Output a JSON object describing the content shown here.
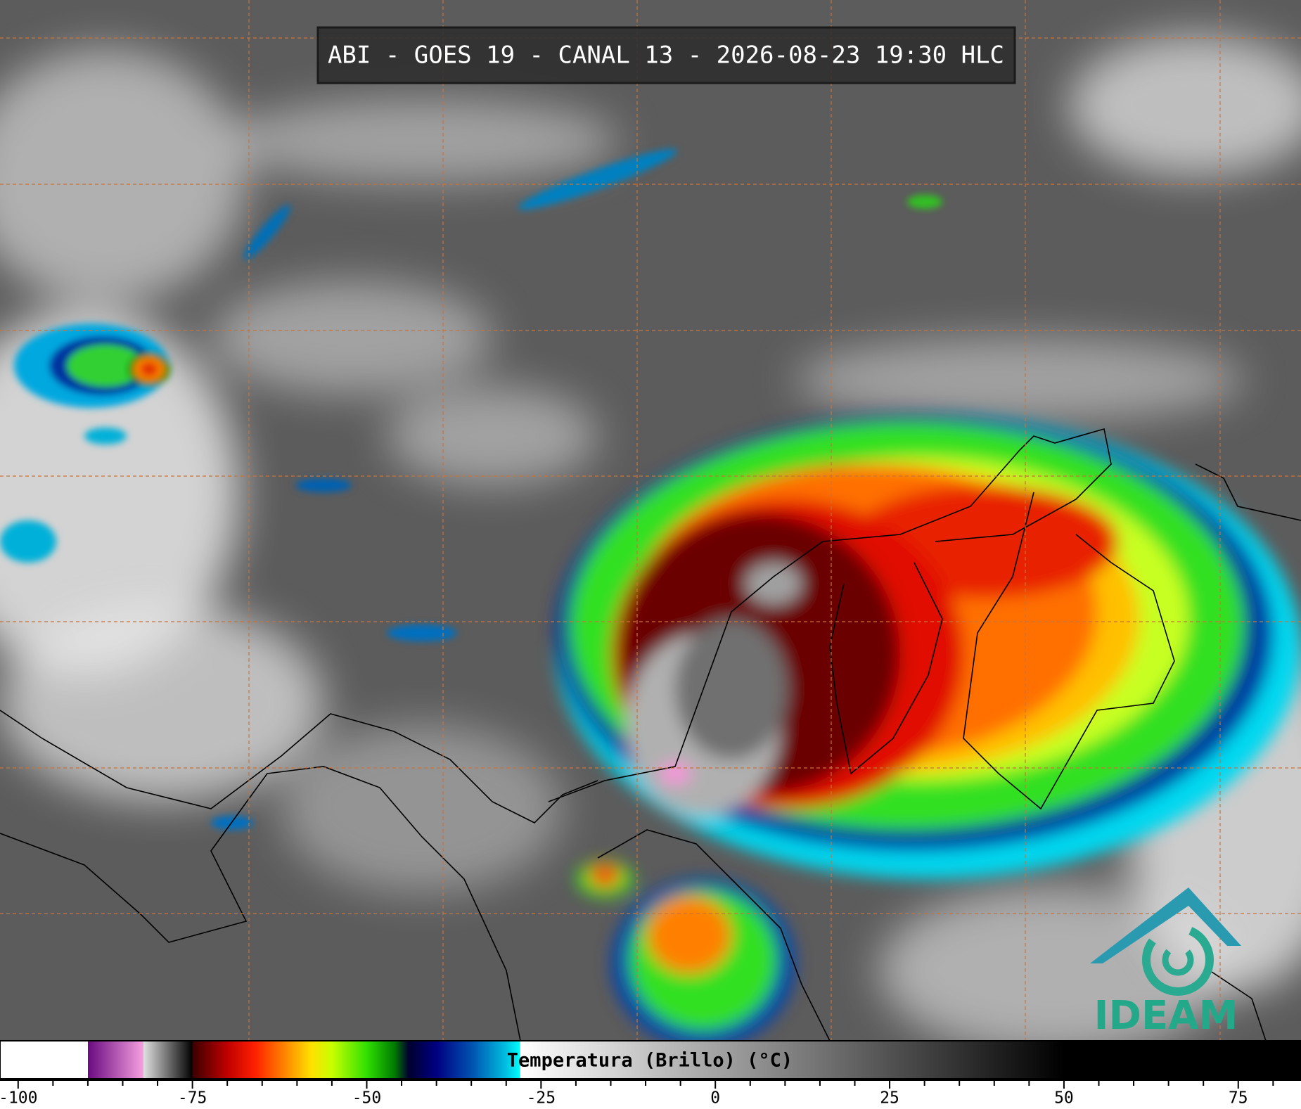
{
  "header": {
    "title": "ABI - GOES 19 - CANAL 13 - 2026-08-23 19:30 HLC"
  },
  "colorbar": {
    "type": "colorbar",
    "label": "Temperatura (Brillo) (°C)",
    "xlim": [
      -102.6,
      84
    ],
    "xticks": [
      -100,
      -75,
      -50,
      -25,
      0,
      25,
      50,
      75
    ],
    "minor_xticks": [
      -95,
      -90,
      -85,
      -80,
      -70,
      -65,
      -60,
      -55,
      -45,
      -40,
      -35,
      -30,
      -20,
      -15,
      -10,
      -5,
      5,
      10,
      15,
      20,
      30,
      35,
      40,
      45,
      55,
      60,
      65,
      70,
      80
    ],
    "colormap": [
      {
        "value": -102.6,
        "color": "#ffffff"
      },
      {
        "value": -90,
        "color": "#ffffff"
      },
      {
        "value": -90,
        "color": "#6a0a80"
      },
      {
        "value": -82,
        "color": "#f7a0e0"
      },
      {
        "value": -82,
        "color": "#e0e0e0"
      },
      {
        "value": -76,
        "color": "#202020"
      },
      {
        "value": -75,
        "color": "#000000"
      },
      {
        "value": -75,
        "color": "#3a0000"
      },
      {
        "value": -70,
        "color": "#c00000"
      },
      {
        "value": -66,
        "color": "#ff2000"
      },
      {
        "value": -62,
        "color": "#ff8000"
      },
      {
        "value": -58,
        "color": "#ffe000"
      },
      {
        "value": -55,
        "color": "#c8ff00"
      },
      {
        "value": -50,
        "color": "#30e000"
      },
      {
        "value": -46,
        "color": "#007a00"
      },
      {
        "value": -44,
        "color": "#000030"
      },
      {
        "value": -40,
        "color": "#000080"
      },
      {
        "value": -35,
        "color": "#0050b0"
      },
      {
        "value": -30,
        "color": "#00c0e0"
      },
      {
        "value": -28,
        "color": "#00ffff"
      },
      {
        "value": -28,
        "color": "#ffffff"
      },
      {
        "value": 50,
        "color": "#000000"
      },
      {
        "value": 84,
        "color": "#000000"
      }
    ]
  },
  "logo": {
    "text": "IDEAM"
  }
}
